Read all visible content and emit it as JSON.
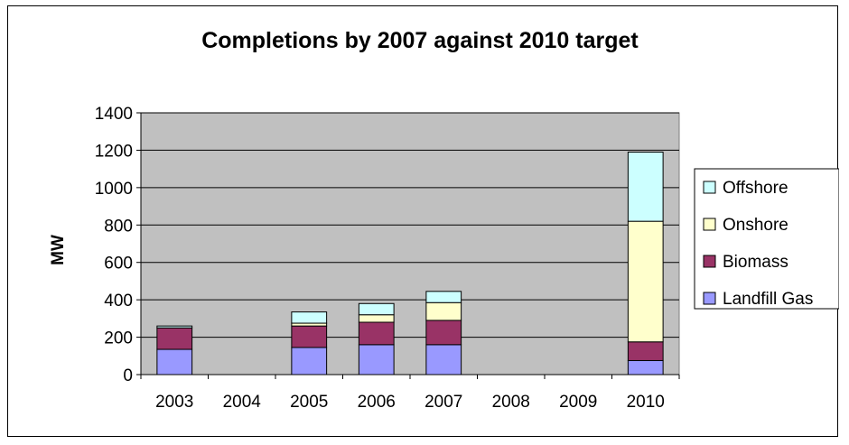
{
  "chart_data": {
    "type": "bar",
    "stacked": true,
    "title": "Completions by 2007 against 2010 target",
    "xlabel": "",
    "ylabel": "MW",
    "ylim": [
      0,
      1400
    ],
    "yticks": [
      0,
      200,
      400,
      600,
      800,
      1000,
      1200,
      1400
    ],
    "categories": [
      "2003",
      "2004",
      "2005",
      "2006",
      "2007",
      "2008",
      "2009",
      "2010"
    ],
    "grid": true,
    "legend_position": "right",
    "series": [
      {
        "name": "Landfill Gas",
        "color": "#9999FF",
        "values": [
          135,
          0,
          145,
          160,
          160,
          0,
          0,
          75
        ]
      },
      {
        "name": "Biomass",
        "color": "#993366",
        "values": [
          115,
          0,
          115,
          120,
          130,
          0,
          0,
          100
        ]
      },
      {
        "name": "Onshore",
        "color": "#FFFFCC",
        "values": [
          0,
          0,
          15,
          40,
          95,
          0,
          0,
          645
        ]
      },
      {
        "name": "Offshore",
        "color": "#CCFFFF",
        "values": [
          10,
          0,
          60,
          60,
          60,
          0,
          0,
          370
        ]
      }
    ],
    "plot_background": "#C0C0C0"
  }
}
